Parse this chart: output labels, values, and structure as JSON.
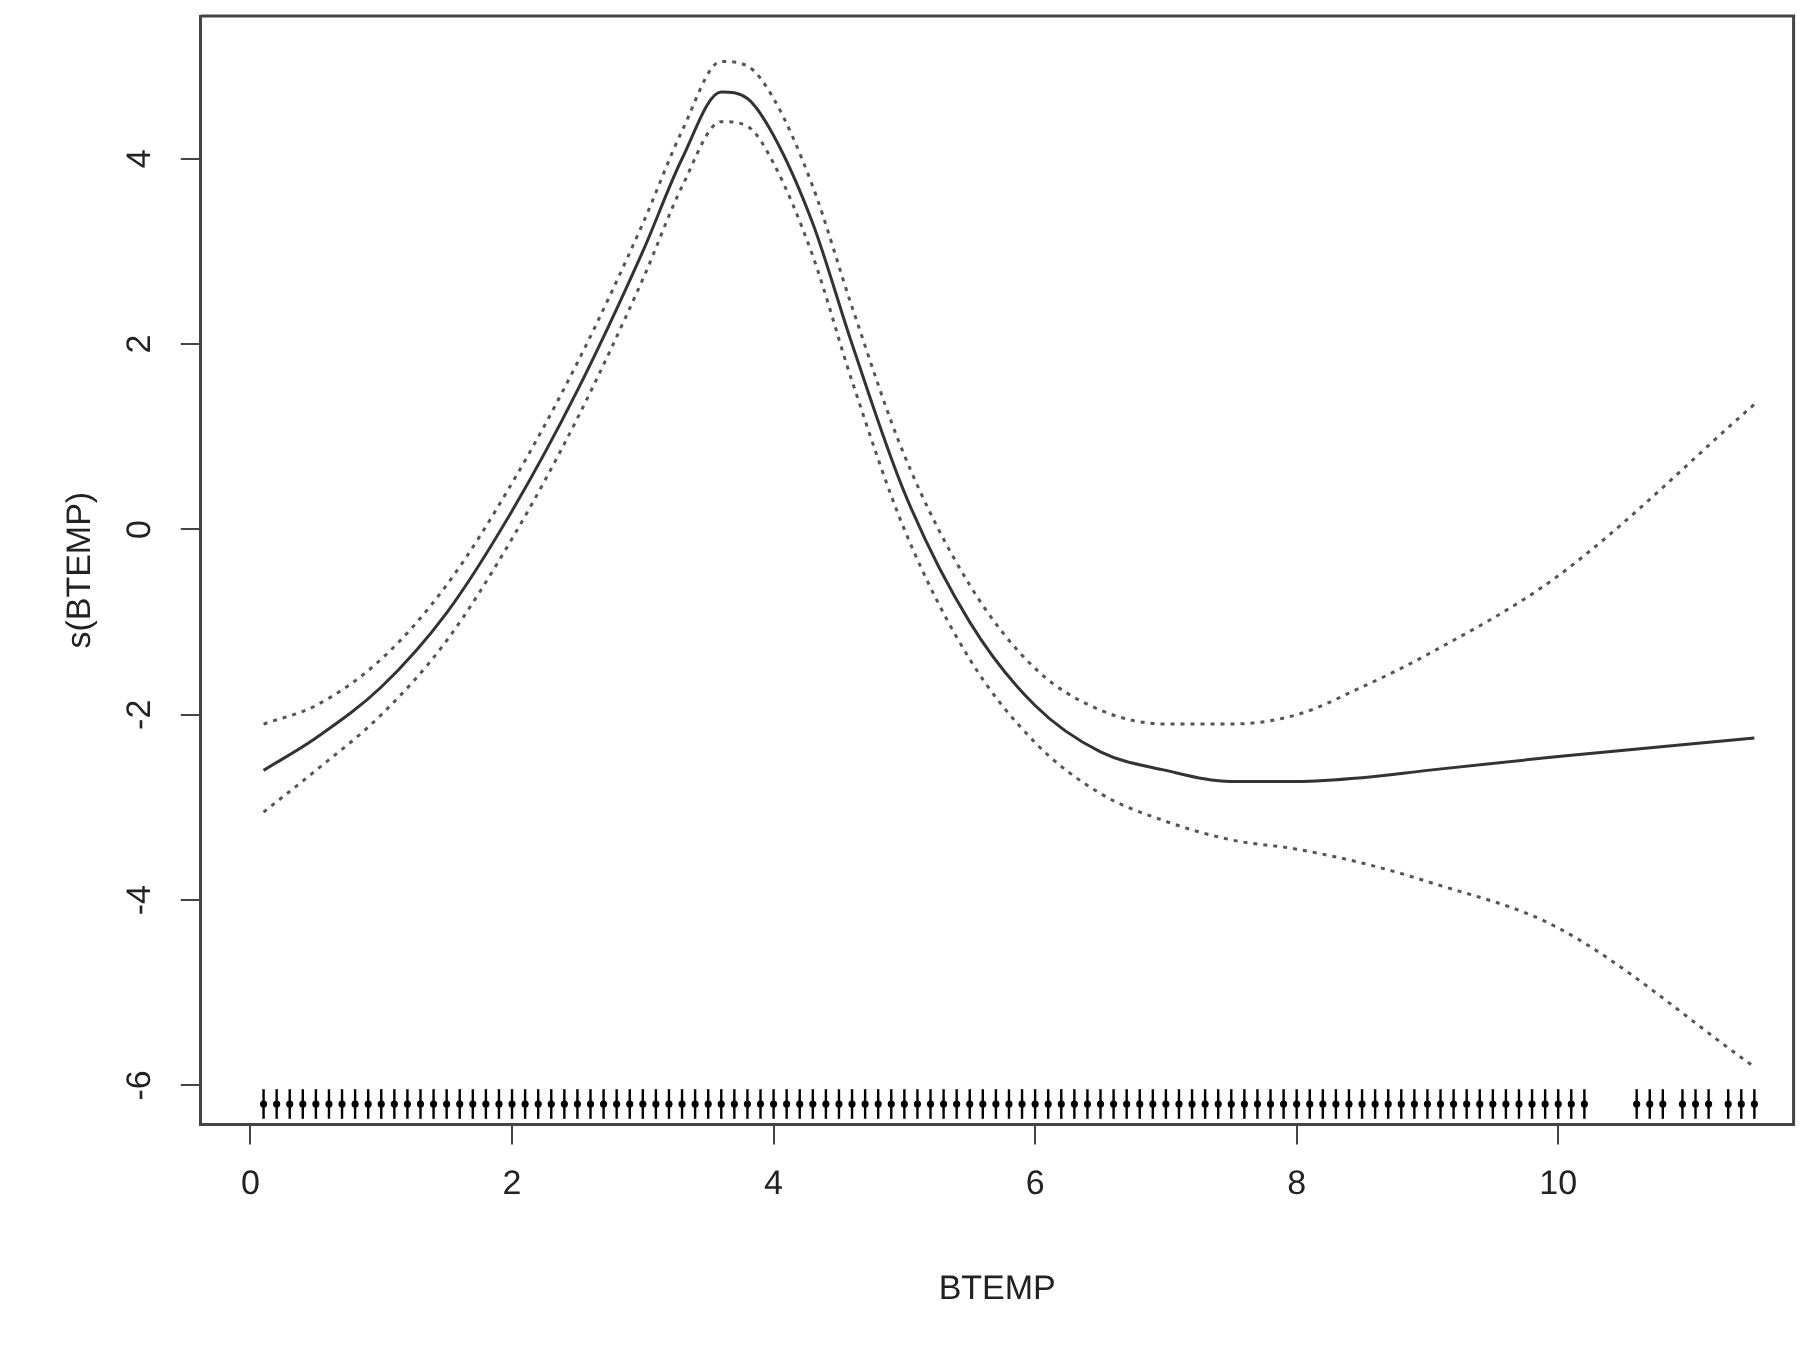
{
  "chart_data": {
    "type": "line",
    "xlabel": "BTEMP",
    "ylabel": "s(BTEMP)",
    "x": [
      0.1,
      0.5,
      1.0,
      1.5,
      2.0,
      2.5,
      3.0,
      3.3,
      3.6,
      3.8,
      4.0,
      4.3,
      4.6,
      5.0,
      5.5,
      6.0,
      6.5,
      7.0,
      7.5,
      8.0,
      8.5,
      9.0,
      10.0,
      11.5
    ],
    "series": [
      {
        "color": "#333333",
        "line_style": "solid",
        "values": [
          -2.6,
          -2.25,
          -1.7,
          -0.9,
          0.2,
          1.5,
          3.0,
          4.0,
          4.72,
          4.65,
          4.25,
          3.3,
          2.0,
          0.4,
          -1.0,
          -1.9,
          -2.4,
          -2.6,
          -2.72,
          -2.72,
          -2.68,
          -2.6,
          -2.45,
          -2.25
        ]
      },
      {
        "color": "#555555",
        "line_style": "dotted",
        "values": [
          -2.1,
          -1.9,
          -1.4,
          -0.6,
          0.5,
          1.8,
          3.3,
          4.3,
          5.05,
          5.0,
          4.65,
          3.7,
          2.4,
          0.8,
          -0.6,
          -1.5,
          -1.95,
          -2.1,
          -2.1,
          -2.0,
          -1.7,
          -1.35,
          -0.5,
          1.35
        ]
      },
      {
        "color": "#555555",
        "line_style": "dotted",
        "values": [
          -3.05,
          -2.6,
          -2.0,
          -1.2,
          -0.1,
          1.2,
          2.7,
          3.7,
          4.4,
          4.35,
          3.95,
          2.95,
          1.6,
          0.0,
          -1.4,
          -2.3,
          -2.85,
          -3.15,
          -3.35,
          -3.45,
          -3.6,
          -3.8,
          -4.3,
          -5.8
        ]
      },
      {
        "type": "scatter",
        "color": "#000000",
        "errors": [
          0.16,
          0.16,
          0.16,
          0.16,
          0.16,
          0.16,
          0.16,
          0.16,
          0.16,
          0.16,
          0.16,
          0.16,
          0.16,
          0.16,
          0.16,
          0.16,
          0.16,
          0.16,
          0.16,
          0.16,
          0.16,
          0.16,
          0.16,
          0.16,
          0.16,
          0.16,
          0.16,
          0.16,
          0.16,
          0.16,
          0.16,
          0.16,
          0.16,
          0.16,
          0.16,
          0.16,
          0.16,
          0.16,
          0.16,
          0.16,
          0.16,
          0.16,
          0.16,
          0.16,
          0.16,
          0.16,
          0.16,
          0.16,
          0.16,
          0.16,
          0.16,
          0.16,
          0.16,
          0.16,
          0.16,
          0.16,
          0.16,
          0.16,
          0.16,
          0.16,
          0.16,
          0.16,
          0.16,
          0.16,
          0.16,
          0.16,
          0.16,
          0.16,
          0.16,
          0.16,
          0.16,
          0.16,
          0.16,
          0.16,
          0.16,
          0.16,
          0.16,
          0.16,
          0.16,
          0.16,
          0.16,
          0.16,
          0.16,
          0.16,
          0.16,
          0.16,
          0.16,
          0.16,
          0.16,
          0.16,
          0.16,
          0.16,
          0.16,
          0.16,
          0.16,
          0.16,
          0.16,
          0.16,
          0.16,
          0.16,
          0.16,
          0.16,
          0.16,
          0.16,
          0.16,
          0.16,
          0.16,
          0.16,
          0.16,
          0.16,
          0.16
        ],
        "x": [
          0.1,
          0.2,
          0.3,
          0.4,
          0.5,
          0.6,
          0.7,
          0.8,
          0.9,
          1.0,
          1.1,
          1.2,
          1.3,
          1.4,
          1.5,
          1.6,
          1.7,
          1.8,
          1.9,
          2.0,
          2.1,
          2.2,
          2.3,
          2.4,
          2.5,
          2.6,
          2.7,
          2.8,
          2.9,
          3.0,
          3.1,
          3.2,
          3.3,
          3.4,
          3.5,
          3.6,
          3.7,
          3.8,
          3.9,
          4.0,
          4.1,
          4.2,
          4.3,
          4.4,
          4.5,
          4.6,
          4.7,
          4.8,
          4.9,
          5.0,
          5.1,
          5.2,
          5.3,
          5.4,
          5.5,
          5.6,
          5.7,
          5.8,
          5.9,
          6.0,
          6.1,
          6.2,
          6.3,
          6.4,
          6.5,
          6.6,
          6.7,
          6.8,
          6.9,
          7.0,
          7.1,
          7.2,
          7.3,
          7.4,
          7.5,
          7.6,
          7.7,
          7.8,
          7.9,
          8.0,
          8.1,
          8.2,
          8.3,
          8.4,
          8.5,
          8.6,
          8.7,
          8.8,
          8.9,
          9.0,
          9.1,
          9.2,
          9.3,
          9.4,
          9.5,
          9.6,
          9.7,
          9.8,
          9.9,
          10.0,
          10.1,
          10.2,
          10.6,
          10.7,
          10.8,
          10.95,
          11.05,
          11.15,
          11.3,
          11.4,
          11.5
        ],
        "values": [
          -6.2,
          -6.2,
          -6.2,
          -6.2,
          -6.2,
          -6.2,
          -6.2,
          -6.2,
          -6.2,
          -6.2,
          -6.2,
          -6.2,
          -6.2,
          -6.2,
          -6.2,
          -6.2,
          -6.2,
          -6.2,
          -6.2,
          -6.2,
          -6.2,
          -6.2,
          -6.2,
          -6.2,
          -6.2,
          -6.2,
          -6.2,
          -6.2,
          -6.2,
          -6.2,
          -6.2,
          -6.2,
          -6.2,
          -6.2,
          -6.2,
          -6.2,
          -6.2,
          -6.2,
          -6.2,
          -6.2,
          -6.2,
          -6.2,
          -6.2,
          -6.2,
          -6.2,
          -6.2,
          -6.2,
          -6.2,
          -6.2,
          -6.2,
          -6.2,
          -6.2,
          -6.2,
          -6.2,
          -6.2,
          -6.2,
          -6.2,
          -6.2,
          -6.2,
          -6.2,
          -6.2,
          -6.2,
          -6.2,
          -6.2,
          -6.2,
          -6.2,
          -6.2,
          -6.2,
          -6.2,
          -6.2,
          -6.2,
          -6.2,
          -6.2,
          -6.2,
          -6.2,
          -6.2,
          -6.2,
          -6.2,
          -6.2,
          -6.2,
          -6.2,
          -6.2,
          -6.2,
          -6.2,
          -6.2,
          -6.2,
          -6.2,
          -6.2,
          -6.2,
          -6.2,
          -6.2,
          -6.2,
          -6.2,
          -6.2,
          -6.2,
          -6.2,
          -6.2,
          -6.2,
          -6.2,
          -6.2,
          -6.2,
          -6.2,
          -6.2,
          -6.2,
          -6.2,
          -6.2,
          -6.2,
          -6.2,
          -6.2,
          -6.2,
          -6.2
        ]
      }
    ],
    "xlim": [
      -0.38,
      11.8
    ],
    "xticks": [
      0,
      2,
      4,
      6,
      8,
      10
    ],
    "ylim": [
      -6.42,
      5.54
    ],
    "yticks": [
      -6,
      -4,
      -2,
      0,
      2,
      4
    ],
    "grid": false,
    "legend": false
  }
}
